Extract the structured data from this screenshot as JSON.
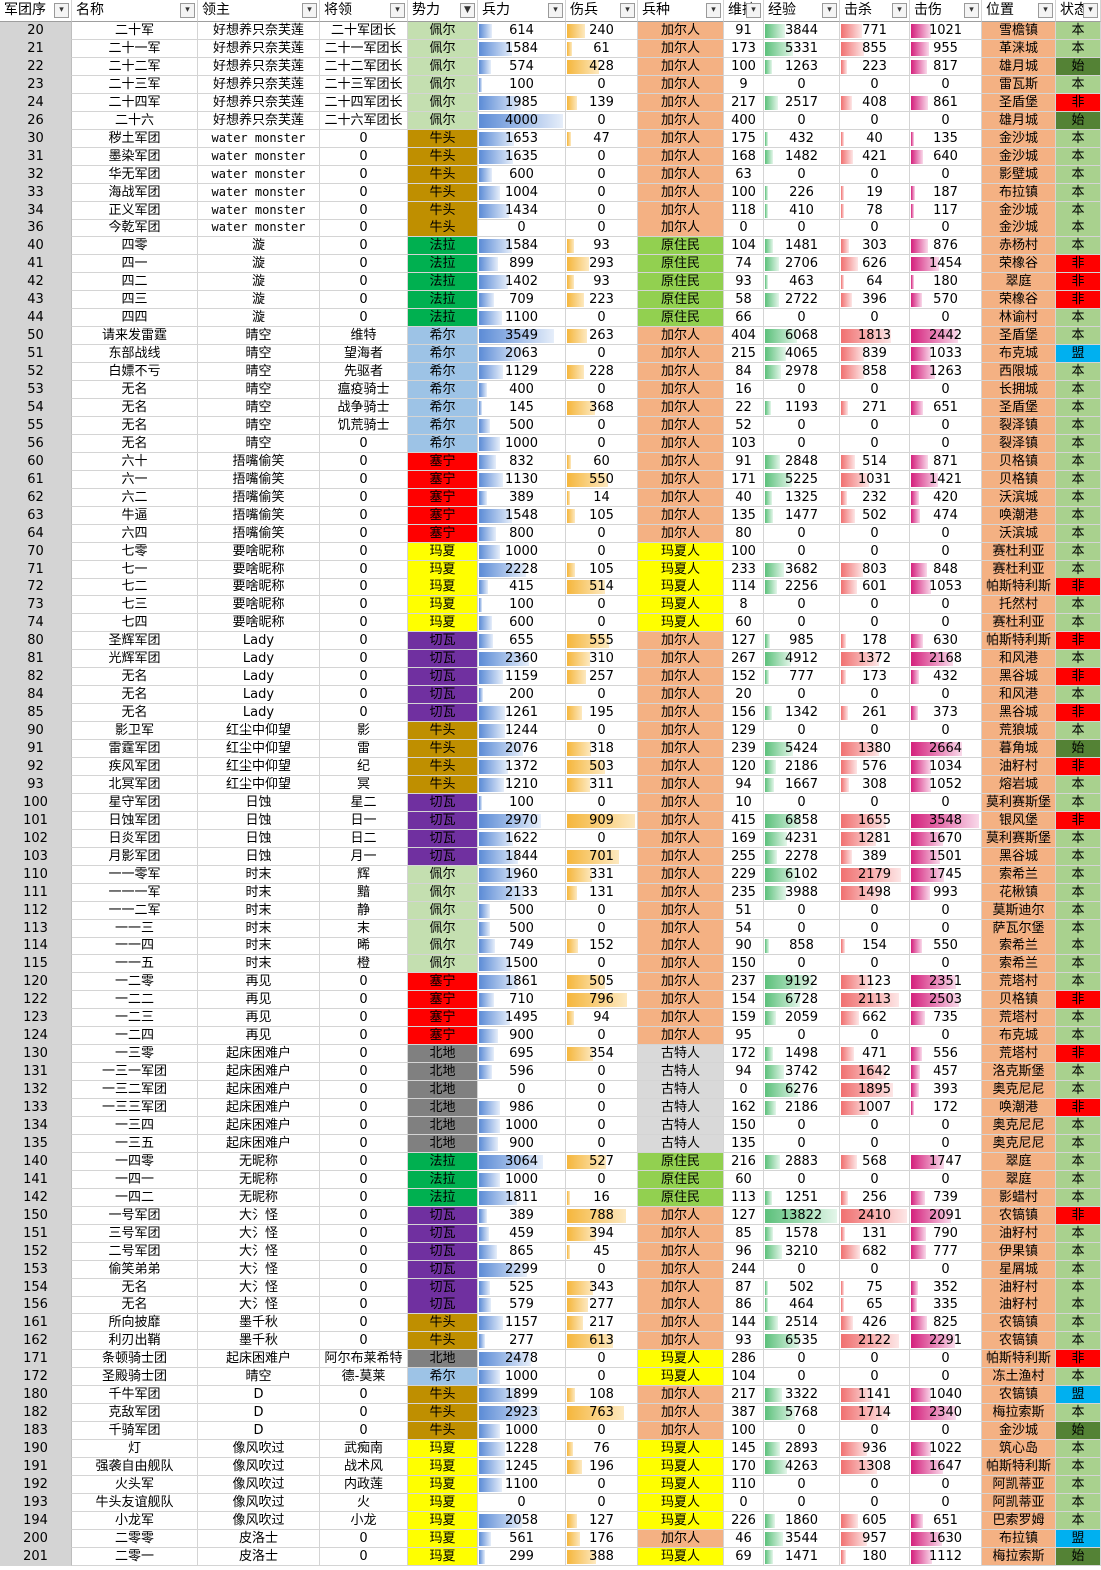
{
  "colors": {
    "faction": {
      "佩尔": "#c4dfb0",
      "牛头": "#bf8f00",
      "法拉": "#00b050",
      "希尔": "#9dc3e6",
      "塞宁": "#ff0000",
      "玛夏": "#ffff00",
      "切瓦": "#7030a0",
      "北地": "#808080"
    },
    "troop": {
      "加尔人": "#f4b183",
      "原住民": "#92d050",
      "玛夏人": "#ffff00",
      "古特人": "#d9d9d9"
    },
    "location_bg": "#f4b183",
    "status": {
      "本": "#a9d18e",
      "始": "#548235",
      "非": "#ff0000",
      "盟": "#00b0f0"
    }
  },
  "headers": [
    "军团序",
    "名称",
    "领主",
    "将领",
    "势力",
    "兵力",
    "伤兵",
    "兵种",
    "维持",
    "经验",
    "击杀",
    "击伤",
    "位置",
    "状态"
  ],
  "rows": [
    [
      "20",
      "二十军",
      "好想养只奈芙莲",
      "二十军团长",
      "佩尔",
      "614",
      "240",
      "加尔人",
      "91",
      "3844",
      "771",
      "1021",
      "雪檐镇",
      "本"
    ],
    [
      "21",
      "二十一军",
      "好想养只奈芙莲",
      "二十一军团长",
      "佩尔",
      "1584",
      "61",
      "加尔人",
      "173",
      "5331",
      "855",
      "955",
      "革涞城",
      "本"
    ],
    [
      "22",
      "二十二军",
      "好想养只奈芙莲",
      "二十二军团长",
      "佩尔",
      "574",
      "428",
      "加尔人",
      "100",
      "1263",
      "223",
      "817",
      "雄月城",
      "始"
    ],
    [
      "23",
      "二十三军",
      "好想养只奈芙莲",
      "二十三军团长",
      "佩尔",
      "100",
      "0",
      "加尔人",
      "9",
      "0",
      "0",
      "0",
      "雷瓦斯",
      "本"
    ],
    [
      "24",
      "二十四军",
      "好想养只奈芙莲",
      "二十四军团长",
      "佩尔",
      "1985",
      "139",
      "加尔人",
      "217",
      "2517",
      "408",
      "861",
      "圣盾堡",
      "非"
    ],
    [
      "26",
      "二十六",
      "好想养只奈芙莲",
      "二十六军团长",
      "佩尔",
      "4000",
      "0",
      "加尔人",
      "400",
      "0",
      "0",
      "0",
      "雄月城",
      "始"
    ],
    [
      "30",
      "秽土军团",
      "water monster",
      "0",
      "牛头",
      "1653",
      "47",
      "加尔人",
      "175",
      "432",
      "40",
      "135",
      "金沙城",
      "本"
    ],
    [
      "31",
      "墨染军团",
      "water monster",
      "0",
      "牛头",
      "1635",
      "0",
      "加尔人",
      "168",
      "1482",
      "421",
      "640",
      "金沙城",
      "本"
    ],
    [
      "32",
      "华无军团",
      "water monster",
      "0",
      "牛头",
      "600",
      "0",
      "加尔人",
      "63",
      "0",
      "0",
      "0",
      "影壁城",
      "本"
    ],
    [
      "33",
      "海战军团",
      "water monster",
      "0",
      "牛头",
      "1004",
      "0",
      "加尔人",
      "100",
      "226",
      "19",
      "187",
      "布拉镇",
      "本"
    ],
    [
      "34",
      "正义军团",
      "water monster",
      "0",
      "牛头",
      "1434",
      "0",
      "加尔人",
      "118",
      "410",
      "78",
      "117",
      "金沙城",
      "本"
    ],
    [
      "36",
      "今乾军团",
      "water monster",
      "0",
      "牛头",
      "0",
      "0",
      "加尔人",
      "0",
      "0",
      "0",
      "0",
      "金沙城",
      "本"
    ],
    [
      "40",
      "四零",
      "漩",
      "0",
      "法拉",
      "1584",
      "93",
      "原住民",
      "104",
      "1481",
      "303",
      "876",
      "赤杨村",
      "本"
    ],
    [
      "41",
      "四一",
      "漩",
      "0",
      "法拉",
      "899",
      "293",
      "原住民",
      "74",
      "2706",
      "626",
      "1454",
      "荣橡谷",
      "非"
    ],
    [
      "42",
      "四二",
      "漩",
      "0",
      "法拉",
      "1402",
      "93",
      "原住民",
      "93",
      "463",
      "64",
      "180",
      "翠庭",
      "非"
    ],
    [
      "43",
      "四三",
      "漩",
      "0",
      "法拉",
      "709",
      "223",
      "原住民",
      "58",
      "2722",
      "396",
      "570",
      "荣橡谷",
      "非"
    ],
    [
      "44",
      "四四",
      "漩",
      "0",
      "法拉",
      "1100",
      "0",
      "原住民",
      "66",
      "0",
      "0",
      "0",
      "林谕村",
      "本"
    ],
    [
      "50",
      "请来发雷霆",
      "晴空",
      "维特",
      "希尔",
      "3549",
      "263",
      "加尔人",
      "404",
      "6068",
      "1813",
      "2442",
      "圣盾堡",
      "本"
    ],
    [
      "51",
      "东部战线",
      "晴空",
      "望海者",
      "希尔",
      "2063",
      "0",
      "加尔人",
      "215",
      "4065",
      "839",
      "1033",
      "布克城",
      "盟"
    ],
    [
      "52",
      "白嫖不亏",
      "晴空",
      "先驱者",
      "希尔",
      "1129",
      "228",
      "加尔人",
      "84",
      "2978",
      "858",
      "1263",
      "西限城",
      "本"
    ],
    [
      "53",
      "无名",
      "晴空",
      "瘟疫骑士",
      "希尔",
      "400",
      "0",
      "加尔人",
      "16",
      "0",
      "0",
      "0",
      "长拥城",
      "本"
    ],
    [
      "54",
      "无名",
      "晴空",
      "战争骑士",
      "希尔",
      "145",
      "368",
      "加尔人",
      "22",
      "1193",
      "271",
      "651",
      "圣盾堡",
      "本"
    ],
    [
      "55",
      "无名",
      "晴空",
      "饥荒骑士",
      "希尔",
      "500",
      "0",
      "加尔人",
      "52",
      "0",
      "0",
      "0",
      "裂泽镇",
      "本"
    ],
    [
      "56",
      "无名",
      "晴空",
      "0",
      "希尔",
      "1000",
      "0",
      "加尔人",
      "103",
      "0",
      "0",
      "0",
      "裂泽镇",
      "本"
    ],
    [
      "60",
      "六十",
      "捂嘴偷笑",
      "0",
      "塞宁",
      "832",
      "60",
      "加尔人",
      "91",
      "2848",
      "514",
      "871",
      "贝格镇",
      "本"
    ],
    [
      "61",
      "六一",
      "捂嘴偷笑",
      "0",
      "塞宁",
      "1130",
      "550",
      "加尔人",
      "171",
      "5225",
      "1031",
      "1421",
      "贝格镇",
      "本"
    ],
    [
      "62",
      "六二",
      "捂嘴偷笑",
      "0",
      "塞宁",
      "389",
      "14",
      "加尔人",
      "40",
      "1325",
      "232",
      "420",
      "沃滨城",
      "本"
    ],
    [
      "63",
      "牛逼",
      "捂嘴偷笑",
      "0",
      "塞宁",
      "1548",
      "105",
      "加尔人",
      "135",
      "1477",
      "502",
      "474",
      "唤潮港",
      "本"
    ],
    [
      "64",
      "六四",
      "捂嘴偷笑",
      "0",
      "塞宁",
      "800",
      "0",
      "加尔人",
      "80",
      "0",
      "0",
      "0",
      "沃滨城",
      "本"
    ],
    [
      "70",
      "七零",
      "要啥昵称",
      "0",
      "玛夏",
      "1000",
      "0",
      "玛夏人",
      "100",
      "0",
      "0",
      "0",
      "赛杜利亚",
      "本"
    ],
    [
      "71",
      "七一",
      "要啥昵称",
      "0",
      "玛夏",
      "2228",
      "105",
      "玛夏人",
      "233",
      "3682",
      "803",
      "848",
      "赛杜利亚",
      "本"
    ],
    [
      "72",
      "七二",
      "要啥昵称",
      "0",
      "玛夏",
      "415",
      "514",
      "玛夏人",
      "114",
      "2256",
      "601",
      "1053",
      "帕斯特利斯",
      "非"
    ],
    [
      "73",
      "七三",
      "要啥昵称",
      "0",
      "玛夏",
      "100",
      "0",
      "玛夏人",
      "8",
      "0",
      "0",
      "0",
      "托然村",
      "本"
    ],
    [
      "74",
      "七四",
      "要啥昵称",
      "0",
      "玛夏",
      "600",
      "0",
      "玛夏人",
      "60",
      "0",
      "0",
      "0",
      "赛杜利亚",
      "本"
    ],
    [
      "80",
      "圣辉军团",
      "Lady",
      "0",
      "切瓦",
      "655",
      "555",
      "加尔人",
      "127",
      "985",
      "178",
      "630",
      "帕斯特利斯",
      "非"
    ],
    [
      "81",
      "光辉军团",
      "Lady",
      "0",
      "切瓦",
      "2360",
      "310",
      "加尔人",
      "267",
      "4912",
      "1372",
      "2168",
      "和风港",
      "本"
    ],
    [
      "82",
      "无名",
      "Lady",
      "0",
      "切瓦",
      "1159",
      "257",
      "加尔人",
      "152",
      "777",
      "173",
      "432",
      "黑谷城",
      "非"
    ],
    [
      "84",
      "无名",
      "Lady",
      "0",
      "切瓦",
      "200",
      "0",
      "加尔人",
      "20",
      "0",
      "0",
      "0",
      "和风港",
      "本"
    ],
    [
      "85",
      "无名",
      "Lady",
      "0",
      "切瓦",
      "1261",
      "195",
      "加尔人",
      "156",
      "1342",
      "261",
      "373",
      "黑谷城",
      "非"
    ],
    [
      "90",
      "影卫军",
      "红尘中仰望",
      "影",
      "牛头",
      "1244",
      "0",
      "加尔人",
      "129",
      "0",
      "0",
      "0",
      "荒狼城",
      "本"
    ],
    [
      "91",
      "雷霆军团",
      "红尘中仰望",
      "雷",
      "牛头",
      "2076",
      "318",
      "加尔人",
      "239",
      "5424",
      "1380",
      "2664",
      "暮角城",
      "始"
    ],
    [
      "92",
      "疾风军团",
      "红尘中仰望",
      "纪",
      "牛头",
      "1372",
      "503",
      "加尔人",
      "120",
      "2186",
      "576",
      "1034",
      "油籽村",
      "非"
    ],
    [
      "93",
      "北冥军团",
      "红尘中仰望",
      "冥",
      "牛头",
      "1210",
      "311",
      "加尔人",
      "94",
      "1667",
      "308",
      "1052",
      "熔岩城",
      "本"
    ],
    [
      "100",
      "星守军团",
      "日蚀",
      "星二",
      "切瓦",
      "100",
      "0",
      "加尔人",
      "10",
      "0",
      "0",
      "0",
      "莫利赛斯堡",
      "本"
    ],
    [
      "101",
      "日蚀军团",
      "日蚀",
      "日一",
      "切瓦",
      "2970",
      "909",
      "加尔人",
      "415",
      "6858",
      "1655",
      "3548",
      "银风堡",
      "非"
    ],
    [
      "102",
      "日炎军团",
      "日蚀",
      "日二",
      "切瓦",
      "1622",
      "0",
      "加尔人",
      "169",
      "4231",
      "1281",
      "1670",
      "莫利赛斯堡",
      "本"
    ],
    [
      "103",
      "月影军团",
      "日蚀",
      "月一",
      "切瓦",
      "1844",
      "701",
      "加尔人",
      "255",
      "2278",
      "389",
      "1501",
      "黑谷城",
      "本"
    ],
    [
      "110",
      "一一零军",
      "时末",
      "辉",
      "佩尔",
      "1960",
      "331",
      "加尔人",
      "229",
      "6102",
      "2179",
      "1745",
      "索希兰",
      "本"
    ],
    [
      "111",
      "一一一军",
      "时末",
      "黯",
      "佩尔",
      "2133",
      "131",
      "加尔人",
      "235",
      "3988",
      "1498",
      "993",
      "花楸镇",
      "本"
    ],
    [
      "112",
      "一一二军",
      "时末",
      "静",
      "佩尔",
      "500",
      "0",
      "加尔人",
      "51",
      "0",
      "0",
      "0",
      "莫斯迪尔",
      "本"
    ],
    [
      "113",
      "一一三",
      "时末",
      "末",
      "佩尔",
      "500",
      "0",
      "加尔人",
      "54",
      "0",
      "0",
      "0",
      "萨瓦尔堡",
      "本"
    ],
    [
      "114",
      "一一四",
      "时末",
      "晞",
      "佩尔",
      "749",
      "152",
      "加尔人",
      "90",
      "858",
      "154",
      "550",
      "索希兰",
      "本"
    ],
    [
      "115",
      "一一五",
      "时末",
      "橙",
      "佩尔",
      "1500",
      "0",
      "加尔人",
      "150",
      "0",
      "0",
      "0",
      "索希兰",
      "本"
    ],
    [
      "120",
      "一二零",
      "再见",
      "0",
      "塞宁",
      "1861",
      "505",
      "加尔人",
      "237",
      "9192",
      "1123",
      "2351",
      "荒塔村",
      "本"
    ],
    [
      "122",
      "一二二",
      "再见",
      "0",
      "塞宁",
      "710",
      "796",
      "加尔人",
      "154",
      "6728",
      "2113",
      "2503",
      "贝格镇",
      "非"
    ],
    [
      "123",
      "一二三",
      "再见",
      "0",
      "塞宁",
      "1495",
      "94",
      "加尔人",
      "159",
      "2059",
      "662",
      "735",
      "荒塔村",
      "本"
    ],
    [
      "124",
      "一二四",
      "再见",
      "0",
      "塞宁",
      "900",
      "0",
      "加尔人",
      "95",
      "0",
      "0",
      "0",
      "布克城",
      "本"
    ],
    [
      "130",
      "一三零",
      "起床困难户",
      "0",
      "北地",
      "695",
      "354",
      "古特人",
      "172",
      "1498",
      "471",
      "556",
      "荒塔村",
      "非"
    ],
    [
      "131",
      "一三一军团",
      "起床困难户",
      "0",
      "北地",
      "596",
      "0",
      "古特人",
      "94",
      "3742",
      "1642",
      "457",
      "洛克斯堡",
      "本"
    ],
    [
      "132",
      "一三二军团",
      "起床困难户",
      "0",
      "北地",
      "0",
      "0",
      "古特人",
      "0",
      "6276",
      "1895",
      "393",
      "奥克尼尼",
      "本"
    ],
    [
      "133",
      "一三三军团",
      "起床困难户",
      "0",
      "北地",
      "986",
      "0",
      "古特人",
      "162",
      "2186",
      "1007",
      "172",
      "唤潮港",
      "非"
    ],
    [
      "134",
      "一三四",
      "起床困难户",
      "0",
      "北地",
      "1000",
      "0",
      "古特人",
      "150",
      "0",
      "0",
      "0",
      "奥克尼尼",
      "本"
    ],
    [
      "135",
      "一三五",
      "起床困难户",
      "0",
      "北地",
      "900",
      "0",
      "古特人",
      "135",
      "0",
      "0",
      "0",
      "奥克尼尼",
      "本"
    ],
    [
      "140",
      "一四零",
      "无昵称",
      "0",
      "法拉",
      "3064",
      "527",
      "原住民",
      "216",
      "2883",
      "568",
      "1747",
      "翠庭",
      "本"
    ],
    [
      "141",
      "一四一",
      "无昵称",
      "0",
      "法拉",
      "1000",
      "0",
      "原住民",
      "60",
      "0",
      "0",
      "0",
      "翠庭",
      "本"
    ],
    [
      "142",
      "一四二",
      "无昵称",
      "0",
      "法拉",
      "1811",
      "16",
      "原住民",
      "113",
      "1251",
      "256",
      "739",
      "影蜡村",
      "本"
    ],
    [
      "150",
      "一号军团",
      "大氵怪",
      "0",
      "切瓦",
      "389",
      "788",
      "加尔人",
      "127",
      "13822",
      "2410",
      "2091",
      "农镐镇",
      "非"
    ],
    [
      "151",
      "三号军团",
      "大氵怪",
      "0",
      "切瓦",
      "459",
      "394",
      "加尔人",
      "85",
      "1578",
      "131",
      "790",
      "油籽村",
      "本"
    ],
    [
      "152",
      "二号军团",
      "大氵怪",
      "0",
      "切瓦",
      "865",
      "45",
      "加尔人",
      "96",
      "3210",
      "682",
      "777",
      "伊果镇",
      "本"
    ],
    [
      "153",
      "偷笑弟弟",
      "大氵怪",
      "0",
      "切瓦",
      "2299",
      "0",
      "加尔人",
      "244",
      "0",
      "0",
      "0",
      "星屑城",
      "本"
    ],
    [
      "154",
      "无名",
      "大氵怪",
      "0",
      "切瓦",
      "525",
      "343",
      "加尔人",
      "87",
      "502",
      "75",
      "352",
      "油籽村",
      "本"
    ],
    [
      "156",
      "无名",
      "大氵怪",
      "0",
      "切瓦",
      "579",
      "277",
      "加尔人",
      "86",
      "464",
      "65",
      "335",
      "油籽村",
      "本"
    ],
    [
      "161",
      "所向披靡",
      "墨千秋",
      "0",
      "牛头",
      "1157",
      "217",
      "加尔人",
      "144",
      "2514",
      "426",
      "825",
      "农镐镇",
      "本"
    ],
    [
      "162",
      "利刃出鞘",
      "墨千秋",
      "0",
      "牛头",
      "277",
      "613",
      "加尔人",
      "93",
      "6535",
      "2122",
      "2291",
      "农镐镇",
      "本"
    ],
    [
      "171",
      "条顿骑士团",
      "起床困难户",
      "阿尔布莱希特",
      "北地",
      "2478",
      "0",
      "玛夏人",
      "286",
      "0",
      "0",
      "0",
      "帕斯特利斯",
      "非"
    ],
    [
      "172",
      "圣殿骑士团",
      "晴空",
      "德-莫莱",
      "希尔",
      "1000",
      "0",
      "玛夏人",
      "104",
      "0",
      "0",
      "0",
      "冻土渔村",
      "本"
    ],
    [
      "180",
      "千牛军团",
      "D",
      "0",
      "牛头",
      "1899",
      "108",
      "加尔人",
      "217",
      "3322",
      "1141",
      "1040",
      "农镐镇",
      "盟"
    ],
    [
      "182",
      "克敌军团",
      "D",
      "0",
      "牛头",
      "2923",
      "763",
      "加尔人",
      "387",
      "5768",
      "1714",
      "2340",
      "梅拉索斯",
      "本"
    ],
    [
      "183",
      "千骑军团",
      "D",
      "0",
      "牛头",
      "1000",
      "0",
      "加尔人",
      "100",
      "0",
      "0",
      "0",
      "金沙城",
      "始"
    ],
    [
      "190",
      "灯",
      "像风吹过",
      "武痴南",
      "玛夏",
      "1228",
      "76",
      "玛夏人",
      "145",
      "2893",
      "936",
      "1022",
      "筑心岛",
      "本"
    ],
    [
      "191",
      "强袭自由舰队",
      "像风吹过",
      "战术风",
      "玛夏",
      "1245",
      "196",
      "玛夏人",
      "170",
      "4263",
      "1308",
      "1647",
      "帕斯特利斯",
      "本"
    ],
    [
      "192",
      "火头军",
      "像风吹过",
      "内政莲",
      "玛夏",
      "1100",
      "0",
      "玛夏人",
      "110",
      "0",
      "0",
      "0",
      "阿凯蒂亚",
      "本"
    ],
    [
      "193",
      "牛头友谊舰队",
      "像风吹过",
      "火",
      "玛夏",
      "0",
      "0",
      "玛夏人",
      "0",
      "0",
      "0",
      "0",
      "阿凯蒂亚",
      "本"
    ],
    [
      "194",
      "小龙军",
      "像风吹过",
      "小龙",
      "玛夏",
      "2058",
      "127",
      "玛夏人",
      "226",
      "1860",
      "605",
      "651",
      "巴索罗姆",
      "本"
    ],
    [
      "200",
      "二零零",
      "皮洛士",
      "0",
      "玛夏",
      "561",
      "176",
      "加尔人",
      "46",
      "3544",
      "957",
      "1630",
      "布拉镇",
      "盟"
    ],
    [
      "201",
      "二零一",
      "皮洛士",
      "0",
      "玛夏",
      "299",
      "388",
      "玛夏人",
      "69",
      "1471",
      "180",
      "1112",
      "梅拉索斯",
      "始"
    ]
  ],
  "bar_max": {
    "兵力": 4000,
    "伤兵": 909,
    "经验": 13822,
    "击杀": 2410,
    "击伤": 3548
  }
}
